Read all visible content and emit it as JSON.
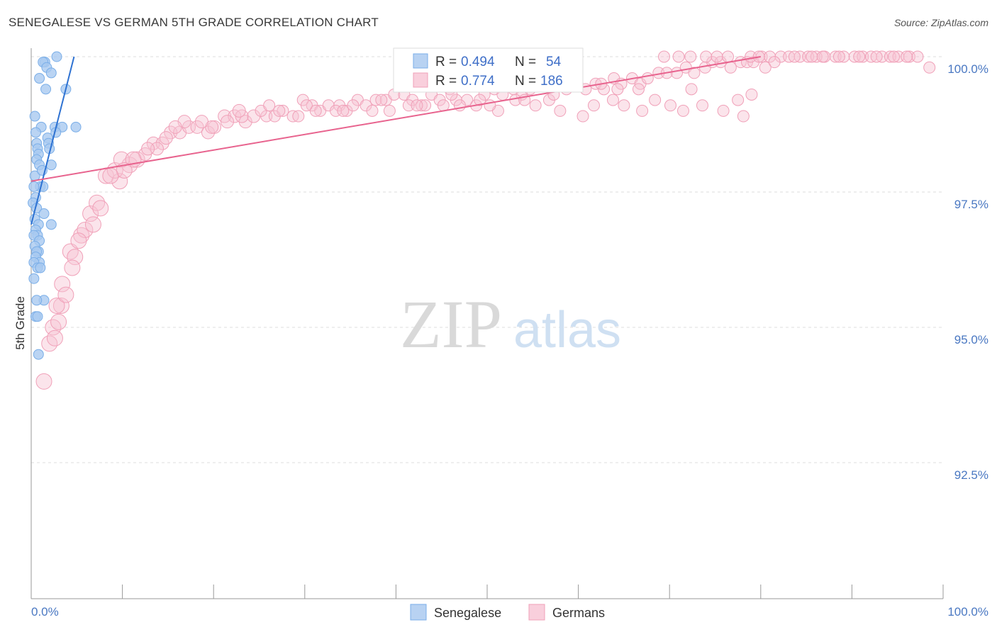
{
  "header": {
    "title": "SENEGALESE VS GERMAN 5TH GRADE CORRELATION CHART",
    "source": "Source: ZipAtlas.com"
  },
  "colors": {
    "blue": "#7aaee8",
    "blue_fill": "#a9c9f0",
    "blue_line": "#2e72d2",
    "pink": "#f0a0b8",
    "pink_fill": "#f7c3d3",
    "pink_line": "#e8638e",
    "grid": "#dddddd",
    "tick_text": "#4a78c2"
  },
  "watermark": {
    "part1": "ZIP",
    "part2": "atlas"
  },
  "chart_data": {
    "type": "scatter",
    "title": "SENEGALESE VS GERMAN 5TH GRADE CORRELATION CHART",
    "xlabel": "",
    "ylabel": "5th Grade",
    "xlim": [
      0,
      100
    ],
    "ylim": [
      90.3,
      100.2
    ],
    "x_tick_labels": [
      "0.0%",
      "100.0%"
    ],
    "y_ticks": [
      {
        "value": 100.0,
        "label": "100.0%"
      },
      {
        "value": 97.5,
        "label": "97.5%"
      },
      {
        "value": 95.0,
        "label": "95.0%"
      },
      {
        "value": 92.5,
        "label": "92.5%"
      }
    ],
    "legend": {
      "position": "top-center",
      "rows": [
        {
          "r_label": "R =",
          "r_value": "0.494",
          "n_label": "N =",
          "n_value": "54"
        },
        {
          "r_label": "R =",
          "r_value": "0.774",
          "n_label": "N =",
          "n_value": "186"
        }
      ]
    },
    "bottom_legend": [
      "Senegalese",
      "Germans"
    ],
    "series": [
      {
        "name": "Senegalese",
        "R": 0.494,
        "N": 54,
        "trend": {
          "x": [
            0.0,
            4.7
          ],
          "y": [
            96.9,
            100.0
          ]
        },
        "points": [
          [
            2.8,
            100.0
          ],
          [
            1.5,
            99.9
          ],
          [
            1.3,
            99.9
          ],
          [
            1.7,
            99.8
          ],
          [
            2.2,
            99.7
          ],
          [
            0.9,
            99.6
          ],
          [
            1.6,
            99.4
          ],
          [
            3.8,
            99.4
          ],
          [
            4.9,
            98.7
          ],
          [
            2.6,
            98.7
          ],
          [
            1.1,
            98.7
          ],
          [
            3.4,
            98.7
          ],
          [
            0.5,
            98.6
          ],
          [
            2.7,
            98.6
          ],
          [
            1.8,
            98.5
          ],
          [
            1.9,
            98.4
          ],
          [
            0.6,
            98.4
          ],
          [
            0.7,
            98.3
          ],
          [
            0.8,
            98.2
          ],
          [
            0.6,
            98.1
          ],
          [
            2.2,
            98.0
          ],
          [
            0.9,
            98.0
          ],
          [
            0.4,
            97.8
          ],
          [
            1.0,
            97.6
          ],
          [
            1.3,
            97.6
          ],
          [
            0.3,
            97.6
          ],
          [
            0.5,
            97.4
          ],
          [
            0.2,
            97.3
          ],
          [
            0.6,
            97.2
          ],
          [
            1.4,
            97.1
          ],
          [
            0.4,
            97.0
          ],
          [
            2.2,
            96.9
          ],
          [
            0.8,
            96.9
          ],
          [
            0.5,
            96.8
          ],
          [
            0.7,
            96.7
          ],
          [
            0.3,
            96.7
          ],
          [
            0.9,
            96.6
          ],
          [
            0.4,
            96.5
          ],
          [
            0.8,
            96.4
          ],
          [
            0.6,
            96.4
          ],
          [
            0.5,
            96.3
          ],
          [
            0.9,
            96.2
          ],
          [
            0.3,
            96.2
          ],
          [
            0.7,
            96.1
          ],
          [
            1.0,
            96.1
          ],
          [
            1.4,
            95.5
          ],
          [
            0.6,
            95.5
          ],
          [
            0.5,
            95.2
          ],
          [
            0.7,
            95.2
          ],
          [
            0.8,
            94.5
          ],
          [
            0.3,
            95.9
          ],
          [
            1.2,
            97.9
          ],
          [
            0.4,
            98.9
          ],
          [
            2.0,
            98.3
          ]
        ]
      },
      {
        "name": "Germans",
        "R": 0.774,
        "N": 186,
        "trend": {
          "x": [
            0.0,
            80.0
          ],
          "y": [
            97.7,
            100.0
          ]
        },
        "points": [
          [
            1.4,
            94.0
          ],
          [
            2.0,
            94.7
          ],
          [
            2.4,
            95.0
          ],
          [
            3.3,
            95.4
          ],
          [
            2.8,
            95.4
          ],
          [
            3.4,
            95.8
          ],
          [
            4.3,
            96.4
          ],
          [
            4.8,
            96.3
          ],
          [
            5.5,
            96.7
          ],
          [
            5.9,
            96.8
          ],
          [
            6.5,
            97.1
          ],
          [
            7.2,
            97.3
          ],
          [
            8.2,
            97.8
          ],
          [
            9.7,
            97.7
          ],
          [
            9.2,
            97.9
          ],
          [
            10.8,
            98.0
          ],
          [
            11.6,
            98.1
          ],
          [
            9.9,
            98.1
          ],
          [
            12.5,
            98.2
          ],
          [
            13.4,
            98.4
          ],
          [
            14.4,
            98.4
          ],
          [
            15.3,
            98.6
          ],
          [
            16.3,
            98.6
          ],
          [
            17.3,
            98.7
          ],
          [
            18.2,
            98.7
          ],
          [
            19.4,
            98.6
          ],
          [
            20.1,
            98.7
          ],
          [
            21.2,
            98.9
          ],
          [
            22.3,
            98.9
          ],
          [
            23.5,
            98.8
          ],
          [
            24.4,
            98.9
          ],
          [
            25.8,
            98.9
          ],
          [
            26.7,
            98.9
          ],
          [
            27.6,
            99.0
          ],
          [
            28.7,
            98.9
          ],
          [
            29.8,
            99.2
          ],
          [
            30.8,
            99.1
          ],
          [
            31.7,
            99.0
          ],
          [
            32.6,
            99.1
          ],
          [
            33.8,
            99.1
          ],
          [
            34.6,
            99.0
          ],
          [
            35.8,
            99.2
          ],
          [
            36.7,
            99.1
          ],
          [
            37.8,
            99.2
          ],
          [
            38.9,
            99.2
          ],
          [
            39.8,
            99.3
          ],
          [
            40.9,
            99.3
          ],
          [
            41.8,
            99.2
          ],
          [
            42.8,
            99.1
          ],
          [
            43.9,
            99.3
          ],
          [
            44.8,
            99.2
          ],
          [
            45.9,
            99.4
          ],
          [
            46.6,
            99.2
          ],
          [
            47.8,
            99.2
          ],
          [
            48.8,
            99.1
          ],
          [
            49.7,
            99.3
          ],
          [
            50.8,
            99.4
          ],
          [
            51.7,
            99.3
          ],
          [
            52.9,
            99.4
          ],
          [
            53.8,
            99.3
          ],
          [
            54.7,
            99.4
          ],
          [
            55.8,
            99.5
          ],
          [
            56.8,
            99.2
          ],
          [
            57.8,
            99.5
          ],
          [
            58.7,
            99.4
          ],
          [
            59.9,
            99.5
          ],
          [
            60.8,
            99.4
          ],
          [
            61.9,
            99.5
          ],
          [
            62.8,
            99.4
          ],
          [
            63.9,
            99.6
          ],
          [
            64.7,
            99.5
          ],
          [
            65.9,
            99.6
          ],
          [
            66.8,
            99.5
          ],
          [
            67.6,
            99.6
          ],
          [
            68.8,
            99.7
          ],
          [
            69.7,
            99.7
          ],
          [
            70.8,
            99.7
          ],
          [
            71.8,
            99.8
          ],
          [
            72.7,
            99.7
          ],
          [
            73.9,
            99.8
          ],
          [
            74.7,
            99.9
          ],
          [
            75.6,
            99.9
          ],
          [
            76.7,
            99.8
          ],
          [
            77.8,
            99.9
          ],
          [
            78.5,
            99.9
          ],
          [
            79.2,
            99.9
          ],
          [
            80.1,
            100.0
          ],
          [
            81.0,
            100.0
          ],
          [
            82.2,
            100.0
          ],
          [
            83.1,
            100.0
          ],
          [
            84.3,
            100.0
          ],
          [
            85.2,
            100.0
          ],
          [
            86.1,
            100.0
          ],
          [
            87.0,
            100.0
          ],
          [
            88.2,
            100.0
          ],
          [
            89.1,
            100.0
          ],
          [
            90.3,
            100.0
          ],
          [
            91.2,
            100.0
          ],
          [
            92.1,
            100.0
          ],
          [
            93.3,
            100.0
          ],
          [
            94.2,
            100.0
          ],
          [
            95.1,
            100.0
          ],
          [
            96.3,
            100.0
          ],
          [
            97.2,
            100.0
          ],
          [
            74.0,
            100.0
          ],
          [
            72.3,
            100.0
          ],
          [
            75.2,
            100.0
          ],
          [
            76.4,
            100.0
          ],
          [
            78.9,
            100.0
          ],
          [
            79.8,
            100.0
          ],
          [
            81.5,
            99.9
          ],
          [
            83.7,
            100.0
          ],
          [
            85.6,
            100.0
          ],
          [
            86.8,
            100.0
          ],
          [
            88.6,
            100.0
          ],
          [
            90.8,
            100.0
          ],
          [
            92.7,
            100.0
          ],
          [
            94.6,
            100.0
          ],
          [
            96.0,
            100.0
          ],
          [
            71.0,
            100.0
          ],
          [
            69.4,
            100.0
          ],
          [
            98.5,
            99.8
          ],
          [
            80.5,
            99.8
          ],
          [
            79.0,
            99.3
          ],
          [
            58.0,
            99.0
          ],
          [
            60.5,
            98.9
          ],
          [
            63.8,
            99.2
          ],
          [
            65.0,
            99.1
          ],
          [
            67.0,
            99.0
          ],
          [
            68.4,
            99.2
          ],
          [
            70.1,
            99.1
          ],
          [
            71.5,
            99.0
          ],
          [
            72.4,
            99.4
          ],
          [
            73.6,
            99.1
          ],
          [
            75.9,
            99.0
          ],
          [
            77.5,
            99.2
          ],
          [
            78.1,
            98.9
          ],
          [
            66.6,
            99.4
          ],
          [
            61.7,
            99.1
          ],
          [
            55.3,
            99.1
          ],
          [
            53.1,
            99.2
          ],
          [
            51.2,
            99.0
          ],
          [
            49.2,
            99.2
          ],
          [
            47.0,
            99.1
          ],
          [
            45.2,
            99.1
          ],
          [
            43.2,
            99.1
          ],
          [
            41.4,
            99.1
          ],
          [
            39.3,
            99.0
          ],
          [
            37.4,
            99.0
          ],
          [
            35.3,
            99.1
          ],
          [
            33.4,
            99.0
          ],
          [
            31.2,
            99.0
          ],
          [
            29.3,
            98.9
          ],
          [
            27.2,
            99.0
          ],
          [
            25.2,
            99.0
          ],
          [
            23.1,
            98.9
          ],
          [
            21.5,
            98.8
          ],
          [
            19.8,
            98.7
          ],
          [
            18.7,
            98.8
          ],
          [
            16.8,
            98.8
          ],
          [
            15.8,
            98.7
          ],
          [
            14.8,
            98.5
          ],
          [
            13.8,
            98.3
          ],
          [
            12.8,
            98.3
          ],
          [
            11.2,
            98.1
          ],
          [
            10.2,
            97.9
          ],
          [
            8.7,
            97.8
          ],
          [
            7.6,
            97.2
          ],
          [
            6.8,
            96.9
          ],
          [
            5.2,
            96.6
          ],
          [
            4.5,
            96.1
          ],
          [
            3.8,
            95.6
          ],
          [
            3.0,
            95.1
          ],
          [
            2.6,
            94.8
          ],
          [
            62.5,
            99.5
          ],
          [
            64.3,
            99.4
          ],
          [
            57.3,
            99.3
          ],
          [
            54.1,
            99.2
          ],
          [
            50.3,
            99.1
          ],
          [
            46.1,
            99.3
          ],
          [
            42.3,
            99.1
          ],
          [
            38.4,
            99.2
          ],
          [
            34.2,
            99.0
          ],
          [
            30.2,
            99.1
          ],
          [
            26.1,
            99.1
          ],
          [
            22.8,
            99.0
          ]
        ]
      }
    ]
  }
}
